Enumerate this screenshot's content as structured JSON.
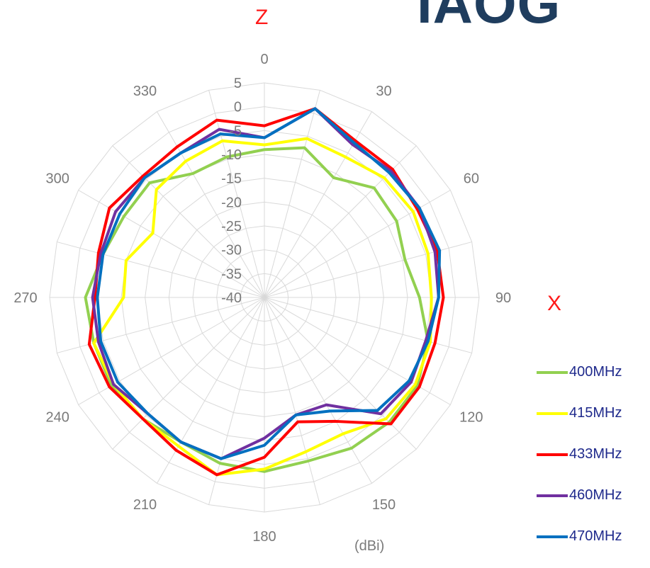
{
  "logo_text": "IAOG",
  "chart_data": {
    "type": "polar-line",
    "title": "",
    "axis_labels": {
      "z": "Z",
      "x": "X"
    },
    "unit": "(dBi)",
    "radial_range": [
      -40,
      5
    ],
    "radial_ticks": [
      "5",
      "0",
      "-5",
      "-10",
      "-15",
      "-20",
      "-25",
      "-30",
      "-35",
      "-40"
    ],
    "radial_tick_values": [
      5,
      0,
      -5,
      -10,
      -15,
      -20,
      -25,
      -30,
      -35,
      -40
    ],
    "angle_ticks": [
      "0",
      "30",
      "60",
      "90",
      "120",
      "150",
      "180",
      "210",
      "240",
      "270",
      "300",
      "330"
    ],
    "angle_tick_values": [
      0,
      30,
      60,
      90,
      120,
      150,
      180,
      210,
      240,
      270,
      300,
      330
    ],
    "grid": true,
    "legend_position": "bottom-right",
    "angles": [
      0,
      15,
      30,
      45,
      60,
      75,
      90,
      105,
      120,
      135,
      150,
      165,
      180,
      195,
      210,
      225,
      240,
      255,
      270,
      285,
      300,
      315,
      330,
      345
    ],
    "series": [
      {
        "name": "400MHz",
        "color": "#92d050",
        "values": [
          -9,
          -7.5,
          -11,
          -7.5,
          -8,
          -9.5,
          -7.5,
          -4.5,
          -3,
          -3,
          -3.5,
          -4.5,
          -3.5,
          -4,
          -5,
          -4,
          -3,
          -3,
          -2.5,
          -5,
          -6,
          -6,
          -10,
          -9.5
        ]
      },
      {
        "name": "415MHz",
        "color": "#ffff00",
        "values": [
          -8,
          -5.5,
          -6,
          -4.5,
          -4,
          -4.5,
          -5,
          -4,
          -3.5,
          -4,
          -7,
          -6.5,
          -4,
          -1.5,
          -4,
          -4,
          -3.5,
          -3,
          -10.5,
          -10,
          -13,
          -8,
          -7,
          -6
        ]
      },
      {
        "name": "433MHz",
        "color": "#ff0000",
        "values": [
          -4,
          1,
          -2,
          -2,
          -3,
          -2.5,
          -2.5,
          -3,
          -2.5,
          -2.5,
          -10,
          -13,
          -6.5,
          -1.5,
          -3,
          -4,
          -2.5,
          -2,
          -4.5,
          -4,
          -2.5,
          -4,
          -3.5,
          -1.5
        ]
      },
      {
        "name": "460MHz",
        "color": "#7030a0",
        "values": [
          -6.5,
          1,
          -3,
          -2.5,
          -2.5,
          -3,
          -3.5,
          -5,
          -4.5,
          -5.5,
          -14,
          -14.5,
          -10.5,
          -5,
          -5,
          -5.5,
          -3.5,
          -4,
          -4,
          -4.5,
          -4,
          -4.5,
          -5,
          -3.5
        ]
      },
      {
        "name": "470MHz",
        "color": "#0070c0",
        "values": [
          -6.5,
          1,
          -2.5,
          -3,
          -2.5,
          -2,
          -3.5,
          -4.5,
          -5,
          -6.5,
          -12.5,
          -14.5,
          -9,
          -5,
          -5,
          -5.5,
          -4.5,
          -4.5,
          -5,
          -5,
          -5,
          -4.5,
          -5,
          -4.5
        ]
      }
    ]
  }
}
